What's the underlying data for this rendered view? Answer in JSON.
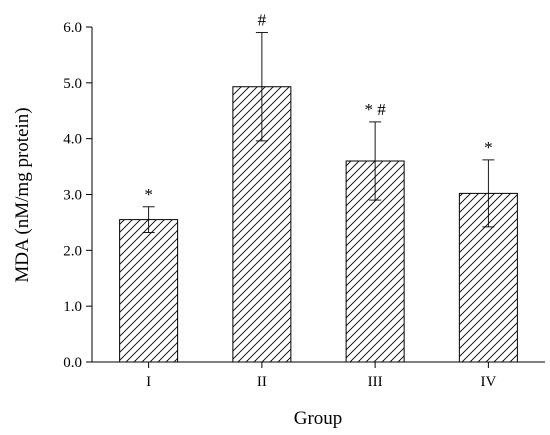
{
  "chart_data": {
    "type": "bar",
    "categories": [
      "I",
      "II",
      "III",
      "IV"
    ],
    "values": [
      2.55,
      4.93,
      3.6,
      3.02
    ],
    "errors": [
      0.23,
      0.97,
      0.7,
      0.6
    ],
    "annotations": [
      "*",
      "#",
      "* #",
      "*"
    ],
    "xlabel": "Group",
    "ylabel": "MDA (nM/mg protein)",
    "ylim": [
      0,
      6
    ],
    "yticks": [
      "0.0",
      "1.0",
      "2.0",
      "3.0",
      "4.0",
      "5.0",
      "6.0"
    ],
    "grid": false,
    "bar_fill": "hatched",
    "colors": {
      "ink": "#000000",
      "background": "#ffffff"
    }
  }
}
